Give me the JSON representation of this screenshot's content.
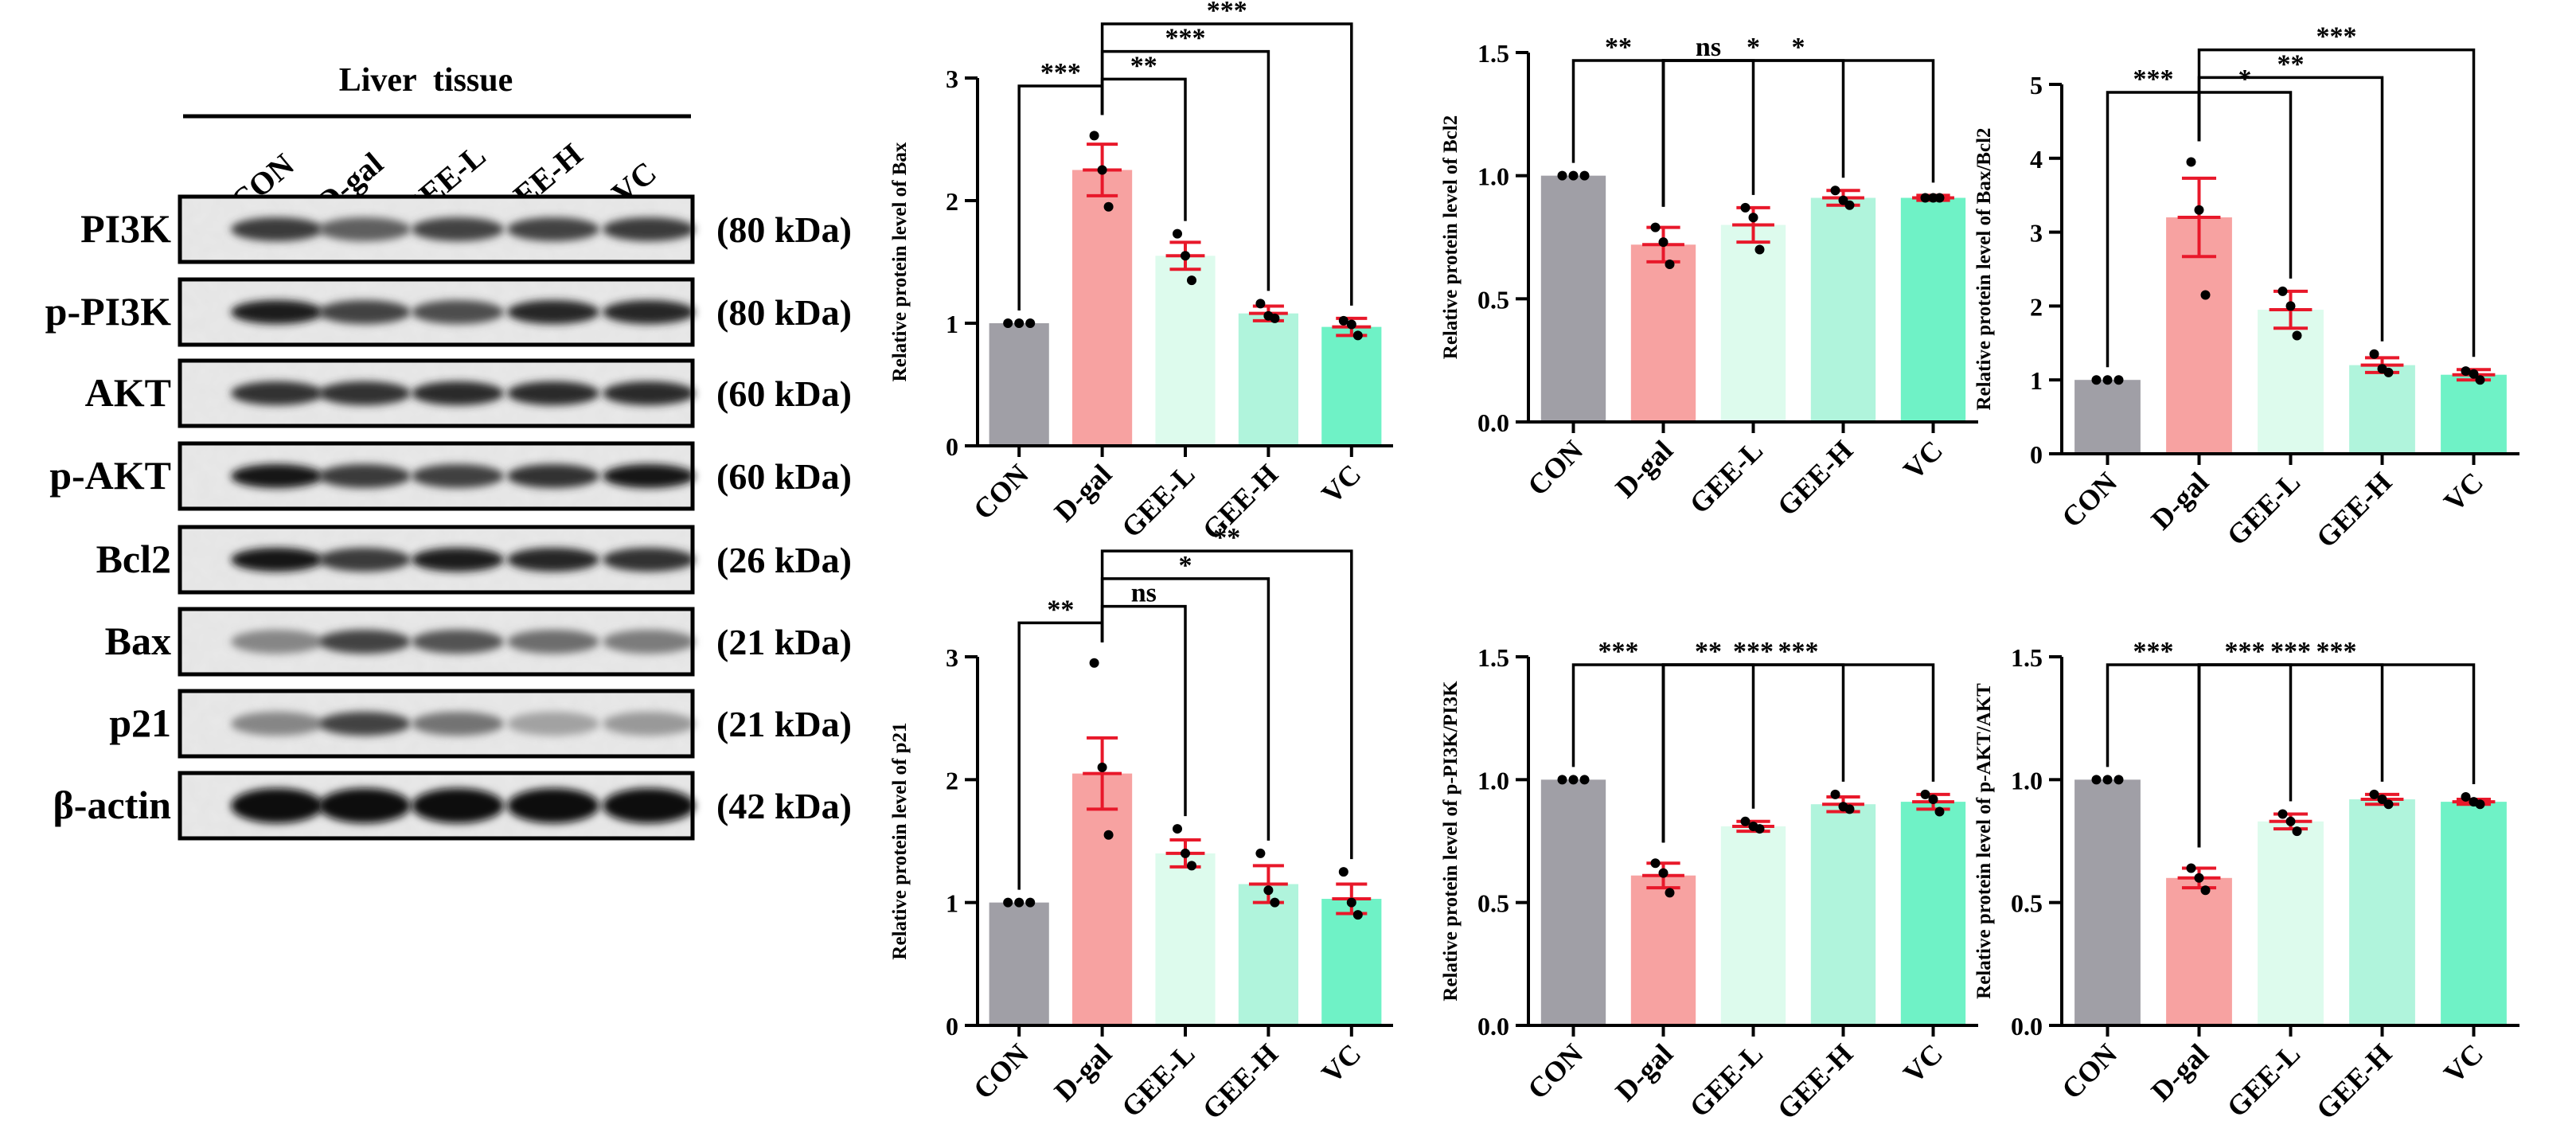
{
  "blot": {
    "title": "Liver  tissue",
    "lanes": [
      "CON",
      "D-gal",
      "GEE-L",
      "GEE-H",
      "VC"
    ],
    "rows": [
      {
        "protein": "PI3K",
        "size": "(80 kDa)"
      },
      {
        "protein": "p-PI3K",
        "size": "(80 kDa)"
      },
      {
        "protein": "AKT",
        "size": "(60 kDa)"
      },
      {
        "protein": "p-AKT",
        "size": "(60 kDa)"
      },
      {
        "protein": "Bcl2",
        "size": "(26 kDa)"
      },
      {
        "protein": "Bax",
        "size": "(21 kDa)"
      },
      {
        "protein": "p21",
        "size": "(21 kDa)"
      },
      {
        "protein": "β-actin",
        "size": "(42 kDa)"
      }
    ],
    "band_intensity": [
      [
        0.75,
        0.55,
        0.7,
        0.7,
        0.75
      ],
      [
        0.9,
        0.7,
        0.65,
        0.85,
        0.85
      ],
      [
        0.8,
        0.8,
        0.82,
        0.82,
        0.82
      ],
      [
        0.95,
        0.75,
        0.72,
        0.8,
        0.95
      ],
      [
        0.95,
        0.75,
        0.9,
        0.85,
        0.8
      ],
      [
        0.35,
        0.7,
        0.62,
        0.48,
        0.4
      ],
      [
        0.35,
        0.7,
        0.45,
        0.2,
        0.25
      ],
      [
        1.0,
        1.0,
        1.0,
        1.0,
        1.0
      ]
    ]
  },
  "colors": {
    "CON": "#a09fa6",
    "D-gal": "#f7a2a1",
    "GEE-L": "#ddfbed",
    "GEE-H": "#b0f4dc",
    "VC": "#6ff2c6",
    "error": "#e8182a",
    "dot": "#000000"
  },
  "chart_data": [
    {
      "type": "bar",
      "ylabel": "Relative protein level of Bax",
      "categories": [
        "CON",
        "D-gal",
        "GEE-L",
        "GEE-H",
        "VC"
      ],
      "values": [
        1.0,
        2.25,
        1.55,
        1.08,
        0.97
      ],
      "errors": [
        0.0,
        0.21,
        0.11,
        0.06,
        0.07
      ],
      "points": [
        [
          1,
          1,
          1
        ],
        [
          2.53,
          2.25,
          1.95
        ],
        [
          1.73,
          1.55,
          1.35
        ],
        [
          1.16,
          1.06,
          1.04
        ],
        [
          1.02,
          0.99,
          0.9
        ]
      ],
      "ylim": [
        0,
        3
      ],
      "yticks": [
        "0",
        "1",
        "2",
        "3"
      ],
      "comparisons": [
        {
          "to": "CON",
          "label": "***"
        },
        {
          "to": "GEE-L",
          "label": "**"
        },
        {
          "to": "GEE-H",
          "label": "***"
        },
        {
          "to": "VC",
          "label": "***"
        }
      ]
    },
    {
      "type": "bar",
      "ylabel": "Relative protein level of Bcl2",
      "categories": [
        "CON",
        "D-gal",
        "GEE-L",
        "GEE-H",
        "VC"
      ],
      "values": [
        1.0,
        0.72,
        0.8,
        0.91,
        0.91
      ],
      "errors": [
        0.0,
        0.07,
        0.07,
        0.03,
        0.01
      ],
      "points": [
        [
          1,
          1,
          1
        ],
        [
          0.79,
          0.73,
          0.64
        ],
        [
          0.87,
          0.83,
          0.7
        ],
        [
          0.94,
          0.9,
          0.88
        ],
        [
          0.91,
          0.91,
          0.91
        ]
      ],
      "ylim": [
        0,
        1.5
      ],
      "yticks": [
        "0.0",
        "0.5",
        "1.0",
        "1.5"
      ],
      "comparisons": [
        {
          "to": "CON",
          "label": "**"
        },
        {
          "to": "GEE-L",
          "label": "ns"
        },
        {
          "to": "GEE-H",
          "label": "*"
        },
        {
          "to": "VC",
          "label": "*"
        }
      ]
    },
    {
      "type": "bar",
      "ylabel": "Relative protein level of Bax/Bcl2",
      "categories": [
        "CON",
        "D-gal",
        "GEE-L",
        "GEE-H",
        "VC"
      ],
      "values": [
        1.0,
        3.2,
        1.95,
        1.2,
        1.07
      ],
      "errors": [
        0.0,
        0.53,
        0.25,
        0.1,
        0.07
      ],
      "points": [
        [
          1,
          1,
          1
        ],
        [
          3.95,
          3.3,
          2.15
        ],
        [
          2.2,
          2.0,
          1.6
        ],
        [
          1.35,
          1.15,
          1.1
        ],
        [
          1.12,
          1.08,
          1.0
        ]
      ],
      "ylim": [
        0,
        5
      ],
      "yticks": [
        "0",
        "1",
        "2",
        "3",
        "4",
        "5"
      ],
      "comparisons": [
        {
          "to": "CON",
          "label": "***"
        },
        {
          "to": "GEE-L",
          "label": "*"
        },
        {
          "to": "GEE-H",
          "label": "**"
        },
        {
          "to": "VC",
          "label": "***"
        }
      ]
    },
    {
      "type": "bar",
      "ylabel": "Relative protein level of p21",
      "categories": [
        "CON",
        "D-gal",
        "GEE-L",
        "GEE-H",
        "VC"
      ],
      "values": [
        1.0,
        2.05,
        1.4,
        1.15,
        1.03
      ],
      "errors": [
        0.0,
        0.29,
        0.11,
        0.15,
        0.12
      ],
      "points": [
        [
          1,
          1,
          1
        ],
        [
          2.95,
          2.1,
          1.55
        ],
        [
          1.6,
          1.4,
          1.3
        ],
        [
          1.4,
          1.1,
          1.0
        ],
        [
          1.25,
          1.0,
          0.9
        ]
      ],
      "ylim": [
        0,
        3
      ],
      "yticks": [
        "0",
        "1",
        "2",
        "3"
      ],
      "comparisons": [
        {
          "to": "CON",
          "label": "**"
        },
        {
          "to": "GEE-L",
          "label": "ns"
        },
        {
          "to": "GEE-H",
          "label": "*"
        },
        {
          "to": "VC",
          "label": "**"
        }
      ]
    },
    {
      "type": "bar",
      "ylabel": "Relative protein level of p-PI3K/PI3K",
      "categories": [
        "CON",
        "D-gal",
        "GEE-L",
        "GEE-H",
        "VC"
      ],
      "values": [
        1.0,
        0.61,
        0.81,
        0.9,
        0.91
      ],
      "errors": [
        0.0,
        0.05,
        0.02,
        0.03,
        0.03
      ],
      "points": [
        [
          1,
          1,
          1
        ],
        [
          0.66,
          0.62,
          0.54
        ],
        [
          0.83,
          0.81,
          0.8
        ],
        [
          0.94,
          0.89,
          0.88
        ],
        [
          0.94,
          0.92,
          0.87
        ]
      ],
      "ylim": [
        0,
        1.5
      ],
      "yticks": [
        "0.0",
        "0.5",
        "1.0",
        "1.5"
      ],
      "comparisons": [
        {
          "to": "CON",
          "label": "***"
        },
        {
          "to": "GEE-L",
          "label": "**"
        },
        {
          "to": "GEE-H",
          "label": "***"
        },
        {
          "to": "VC",
          "label": "***"
        }
      ]
    },
    {
      "type": "bar",
      "ylabel": "Relative protein level of p-AKT/AKT",
      "categories": [
        "CON",
        "D-gal",
        "GEE-L",
        "GEE-H",
        "VC"
      ],
      "values": [
        1.0,
        0.6,
        0.83,
        0.92,
        0.91
      ],
      "errors": [
        0.0,
        0.04,
        0.03,
        0.02,
        0.01
      ],
      "points": [
        [
          1,
          1,
          1
        ],
        [
          0.64,
          0.6,
          0.55
        ],
        [
          0.86,
          0.83,
          0.79
        ],
        [
          0.94,
          0.92,
          0.9
        ],
        [
          0.93,
          0.91,
          0.9
        ]
      ],
      "ylim": [
        0,
        1.5
      ],
      "yticks": [
        "0.0",
        "0.5",
        "1.0",
        "1.5"
      ],
      "comparisons": [
        {
          "to": "CON",
          "label": "***"
        },
        {
          "to": "GEE-L",
          "label": "***"
        },
        {
          "to": "GEE-H",
          "label": "***"
        },
        {
          "to": "VC",
          "label": "***"
        }
      ]
    }
  ]
}
